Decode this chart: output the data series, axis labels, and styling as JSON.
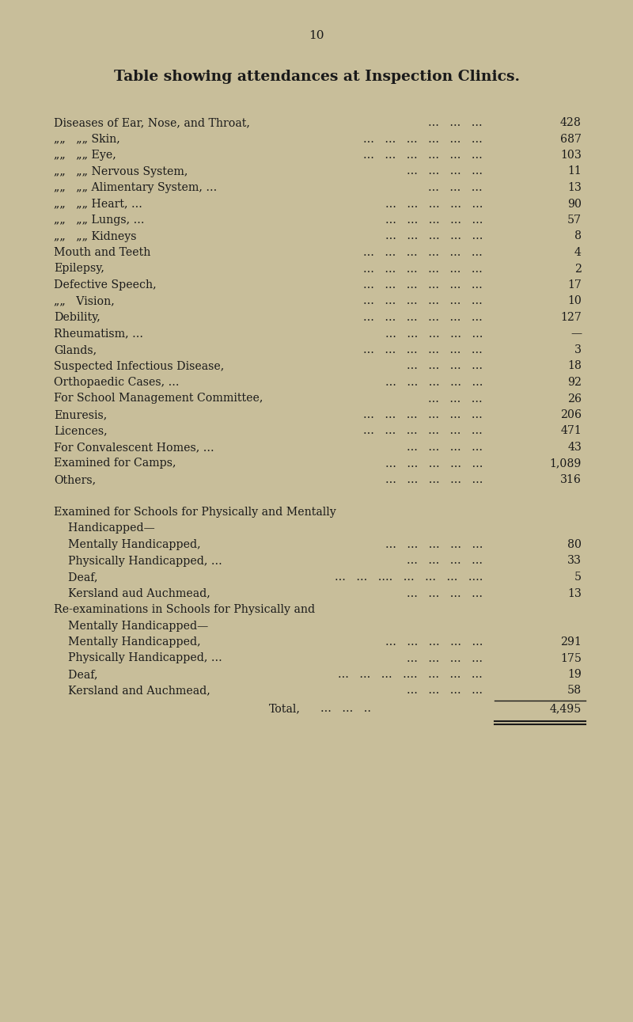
{
  "title": "Table showing attendances at Inspection Clinics.",
  "page_number": "10",
  "background_color": "#c8be9a",
  "text_color": "#1a1a1a",
  "rows": [
    {
      "label": "Diseases of Ear, Nose, and Throat,",
      "dots": "...   ...   ...",
      "value": "428"
    },
    {
      "label": "„„   „„ Skin,",
      "dots": "...   ...   ...   ...   ...   ...",
      "value": "687"
    },
    {
      "label": "„„   „„ Eye,",
      "dots": "...   ...   ...   ...   ...   ...",
      "value": "103"
    },
    {
      "label": "„„   „„ Nervous System,",
      "dots": "...   ...   ...   ...",
      "value": "11"
    },
    {
      "label": "„„   „„ Alimentary System, ...",
      "dots": "...   ...   ...",
      "value": "13"
    },
    {
      "label": "„„   „„ Heart, ...",
      "dots": "...   ...   ...   ...   ...",
      "value": "90"
    },
    {
      "label": "„„   „„ Lungs, ...",
      "dots": "...   ...   ...   ...   ...",
      "value": "57"
    },
    {
      "label": "„„   „„ Kidneys",
      "dots": "...   ...   ...   ...   ...",
      "value": "8"
    },
    {
      "label": "Mouth and Teeth",
      "dots": "...   ...   ...   ...   ...   ...",
      "value": "4"
    },
    {
      "label": "Epilepsy,",
      "dots": "...   ...   ...   ...   ...   ...",
      "value": "2"
    },
    {
      "label": "Defective Speech,",
      "dots": "...   ...   ...   ...   ...   ...",
      "value": "17"
    },
    {
      "label": "„„   Vision,",
      "dots": "...   ...   ...   ...   ...   ...",
      "value": "10"
    },
    {
      "label": "Debility,",
      "dots": "...   ...   ...   ...   ...   ...",
      "value": "127"
    },
    {
      "label": "Rheumatism, ...",
      "dots": "...   ...   ...   ...   ...",
      "value": "—"
    },
    {
      "label": "Glands,",
      "dots": "...   ...   ...   ...   ...   ...",
      "value": "3"
    },
    {
      "label": "Suspected Infectious Disease,",
      "dots": "...   ...   ...   ...",
      "value": "18"
    },
    {
      "label": "Orthopaedic Cases, ...",
      "dots": "...   ...   ...   ...   ...",
      "value": "92"
    },
    {
      "label": "For School Management Committee,",
      "dots": "...   ...   ...",
      "value": "26"
    },
    {
      "label": "Enuresis,",
      "dots": "...   ...   ...   ...   ...   ...",
      "value": "206"
    },
    {
      "label": "Licences,",
      "dots": "...   ...   ...   ...   ...   ...",
      "value": "471"
    },
    {
      "label": "For Convalescent Homes, ...",
      "dots": "...   ...   ...   ...",
      "value": "43"
    },
    {
      "label": "Examined for Camps,",
      "dots": "...   ...   ...   ...   ...",
      "value": "1,089"
    },
    {
      "label": "Others,",
      "dots": "...   ...   ...   ...   ...",
      "value": "316"
    },
    {
      "label": "",
      "dots": "",
      "value": ""
    },
    {
      "label": "Examined for Schools for Physically and Mentally",
      "dots": "",
      "value": "",
      "section_header": true
    },
    {
      "label": "    Handicapped—",
      "dots": "",
      "value": "",
      "section_header": true
    },
    {
      "label": "    Mentally Handicapped,",
      "dots": "...   ...   ...   ...   ...",
      "value": "80",
      "indent": true
    },
    {
      "label": "    Physically Handicapped, ...",
      "dots": "...   ...   ...   ...",
      "value": "33",
      "indent": true
    },
    {
      "label": "    Deaf,",
      "dots": "...   ...   ....   ...   ...   ...   ....",
      "value": "5",
      "indent": true
    },
    {
      "label": "    Kersland aud Auchmead,",
      "dots": "...   ...   ...   ...",
      "value": "13",
      "indent": true
    },
    {
      "label": "Re-examinations in Schools for Physically and",
      "dots": "",
      "value": "",
      "section_header": true
    },
    {
      "label": "    Mentally Handicapped—",
      "dots": "",
      "value": "",
      "section_header": true
    },
    {
      "label": "    Mentally Handicapped,",
      "dots": "...   ...   ...   ...   ...",
      "value": "291",
      "indent": true
    },
    {
      "label": "    Physically Handicapped, ...",
      "dots": "...   ...   ...   ...",
      "value": "175",
      "indent": true
    },
    {
      "label": "    Deaf,",
      "dots": "...   ...   ...   ....   ...   ...   ...",
      "value": "19",
      "indent": true
    },
    {
      "label": "    Kersland and Auchmead,",
      "dots": "...   ...   ...   ...",
      "value": "58",
      "indent": true
    }
  ],
  "total_label": "Total,",
  "total_dots": "...   ...   ..",
  "total_value": "4,495",
  "figsize": [
    8.0,
    12.91
  ],
  "dpi": 100
}
